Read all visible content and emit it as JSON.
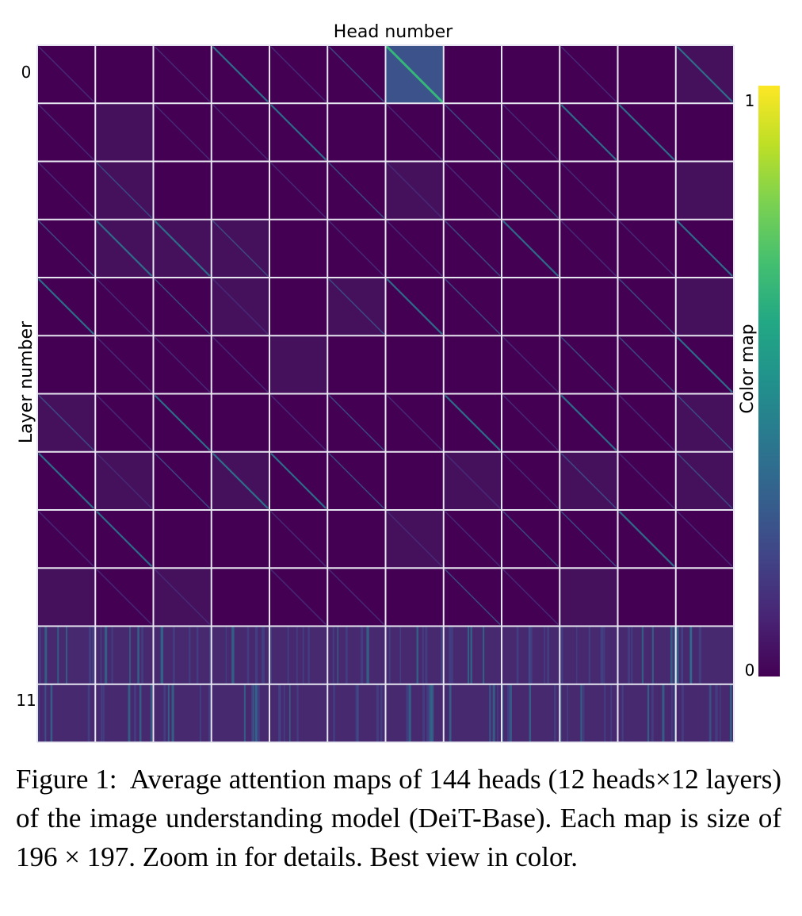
{
  "chart_data": {
    "type": "heatmap",
    "title": "Head number",
    "xlabel": "Head number",
    "ylabel": "Layer number",
    "rows": 12,
    "cols": 12,
    "row_tick_labels": [
      "0",
      "11"
    ],
    "colorbar": {
      "label": "Color map",
      "min_label": "0",
      "max_label": "1",
      "range": [
        0,
        1
      ],
      "colormap": "viridis",
      "stops": [
        "#440154",
        "#482475",
        "#414487",
        "#355f8d",
        "#2a788e",
        "#21918c",
        "#22a884",
        "#44bf70",
        "#7ad151",
        "#bddf26",
        "#fde725"
      ]
    },
    "map_size": "196 x 197",
    "total_heads": 144
  },
  "caption": {
    "label": "Figure 1:",
    "text": "Average attention maps of 144 heads (12 heads×12 layers) of the image understanding model (DeiT-Base). Each map is size of 196 × 197. Zoom in for details. Best view in color."
  },
  "colors": {
    "background_cell": "#440154",
    "grid_line": "#e6e6f0"
  }
}
